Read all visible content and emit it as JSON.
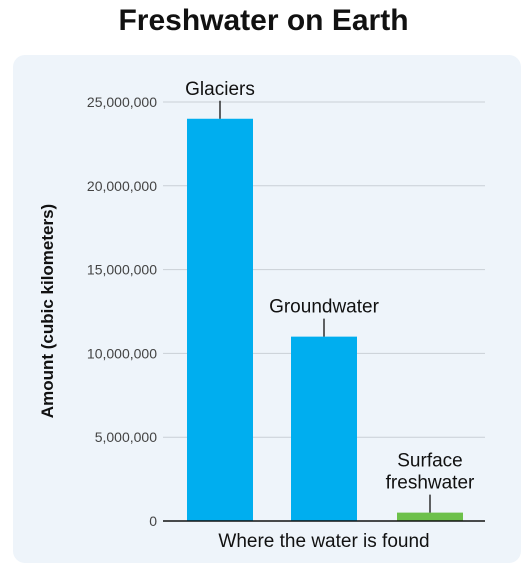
{
  "chart_data": {
    "type": "bar",
    "title": "Freshwater on Earth",
    "xlabel": "Where the water is found",
    "ylabel": "Amount (cubic kilometers)",
    "ylim": [
      0,
      25000000
    ],
    "yticks": [
      0,
      5000000,
      10000000,
      15000000,
      20000000,
      25000000
    ],
    "ytick_labels": [
      "0",
      "5,000,000",
      "10,000,000",
      "15,000,000",
      "20,000,000",
      "25,000,000"
    ],
    "grid": true,
    "categories": [
      "Glaciers",
      "Groundwater",
      "Surface freshwater"
    ],
    "category_label_lines": [
      [
        "Glaciers"
      ],
      [
        "Groundwater"
      ],
      [
        "Surface",
        "freshwater"
      ]
    ],
    "values": [
      24000000,
      11000000,
      500000
    ],
    "colors": [
      "#00aeef",
      "#00aeef",
      "#6cc04a"
    ]
  }
}
